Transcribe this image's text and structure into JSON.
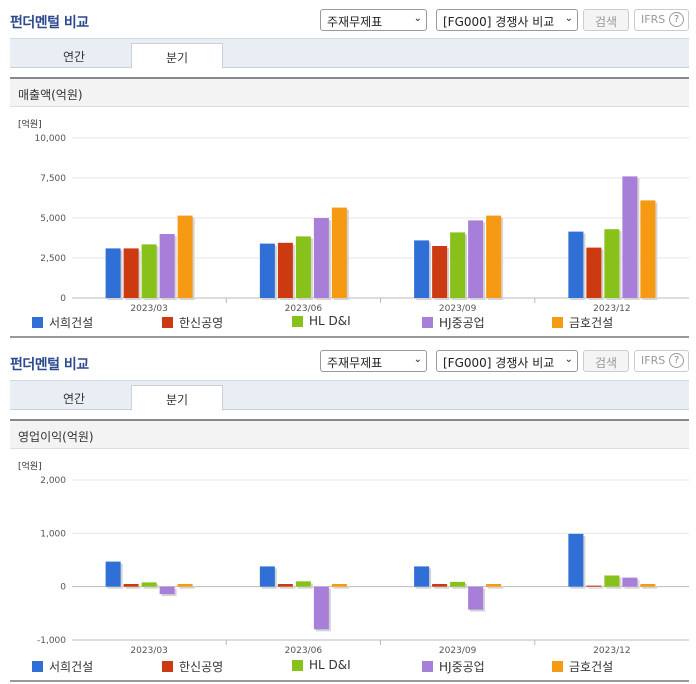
{
  "sections": [
    {
      "header": {
        "title": "펀더멘털 비교",
        "statement_select": "주재무제표",
        "compare_select": "[FG000] 경쟁사 비교",
        "search_label": "검색",
        "ifrs_label": "IFRS",
        "help_label": "?"
      },
      "tabs": [
        {
          "label": "연간",
          "active": false
        },
        {
          "label": "분기",
          "active": true
        }
      ],
      "panel_title": "매출액(억원)",
      "legend": [
        "서희건설",
        "한신공영",
        "HL D&I",
        "HJ중공업",
        "금호건설"
      ]
    },
    {
      "header": {
        "title": "펀더멘털 비교",
        "statement_select": "주재무제표",
        "compare_select": "[FG000] 경쟁사 비교",
        "search_label": "검색",
        "ifrs_label": "IFRS",
        "help_label": "?"
      },
      "tabs": [
        {
          "label": "연간",
          "active": false
        },
        {
          "label": "분기",
          "active": true
        }
      ],
      "panel_title": "영업이익(억원)",
      "legend": [
        "서희건설",
        "한신공영",
        "HL D&I",
        "HJ중공업",
        "금호건설"
      ]
    }
  ],
  "colors": [
    "#2f6fd6",
    "#cc3a12",
    "#88c11a",
    "#a77fd8",
    "#f59a12"
  ],
  "chart_data": [
    {
      "type": "bar",
      "unit_label": "[억원]",
      "categories": [
        "2023/03",
        "2023/06",
        "2023/09",
        "2023/12"
      ],
      "ylim": [
        0,
        10000
      ],
      "yticks": [
        0,
        2500,
        5000,
        7500,
        10000
      ],
      "ytick_labels": [
        "0",
        "2,500",
        "5,000",
        "7,500",
        "10,000"
      ],
      "grid": true,
      "legend_position": "bottom",
      "series": [
        {
          "name": "서희건설",
          "values": [
            3100,
            3400,
            3600,
            4150
          ]
        },
        {
          "name": "한신공영",
          "values": [
            3100,
            3450,
            3250,
            3150
          ]
        },
        {
          "name": "HL D&I",
          "values": [
            3350,
            3850,
            4100,
            4300
          ]
        },
        {
          "name": "HJ중공업",
          "values": [
            4000,
            5000,
            4850,
            7600
          ]
        },
        {
          "name": "금호건설",
          "values": [
            5150,
            5650,
            5150,
            6100
          ]
        }
      ]
    },
    {
      "type": "bar",
      "unit_label": "[억원]",
      "categories": [
        "2023/03",
        "2023/06",
        "2023/09",
        "2023/12"
      ],
      "ylim": [
        -1000,
        2000
      ],
      "yticks": [
        -1000,
        0,
        1000,
        2000
      ],
      "ytick_labels": [
        "-1,000",
        "0",
        "1,000",
        "2,000"
      ],
      "grid": true,
      "legend_position": "bottom",
      "series": [
        {
          "name": "서희건설",
          "values": [
            470,
            380,
            380,
            990
          ]
        },
        {
          "name": "한신공영",
          "values": [
            50,
            50,
            50,
            20
          ]
        },
        {
          "name": "HL D&I",
          "values": [
            80,
            100,
            90,
            210
          ]
        },
        {
          "name": "HJ중공업",
          "values": [
            -140,
            -800,
            -430,
            170
          ]
        },
        {
          "name": "금호건설",
          "values": [
            50,
            50,
            50,
            50
          ]
        }
      ]
    }
  ]
}
